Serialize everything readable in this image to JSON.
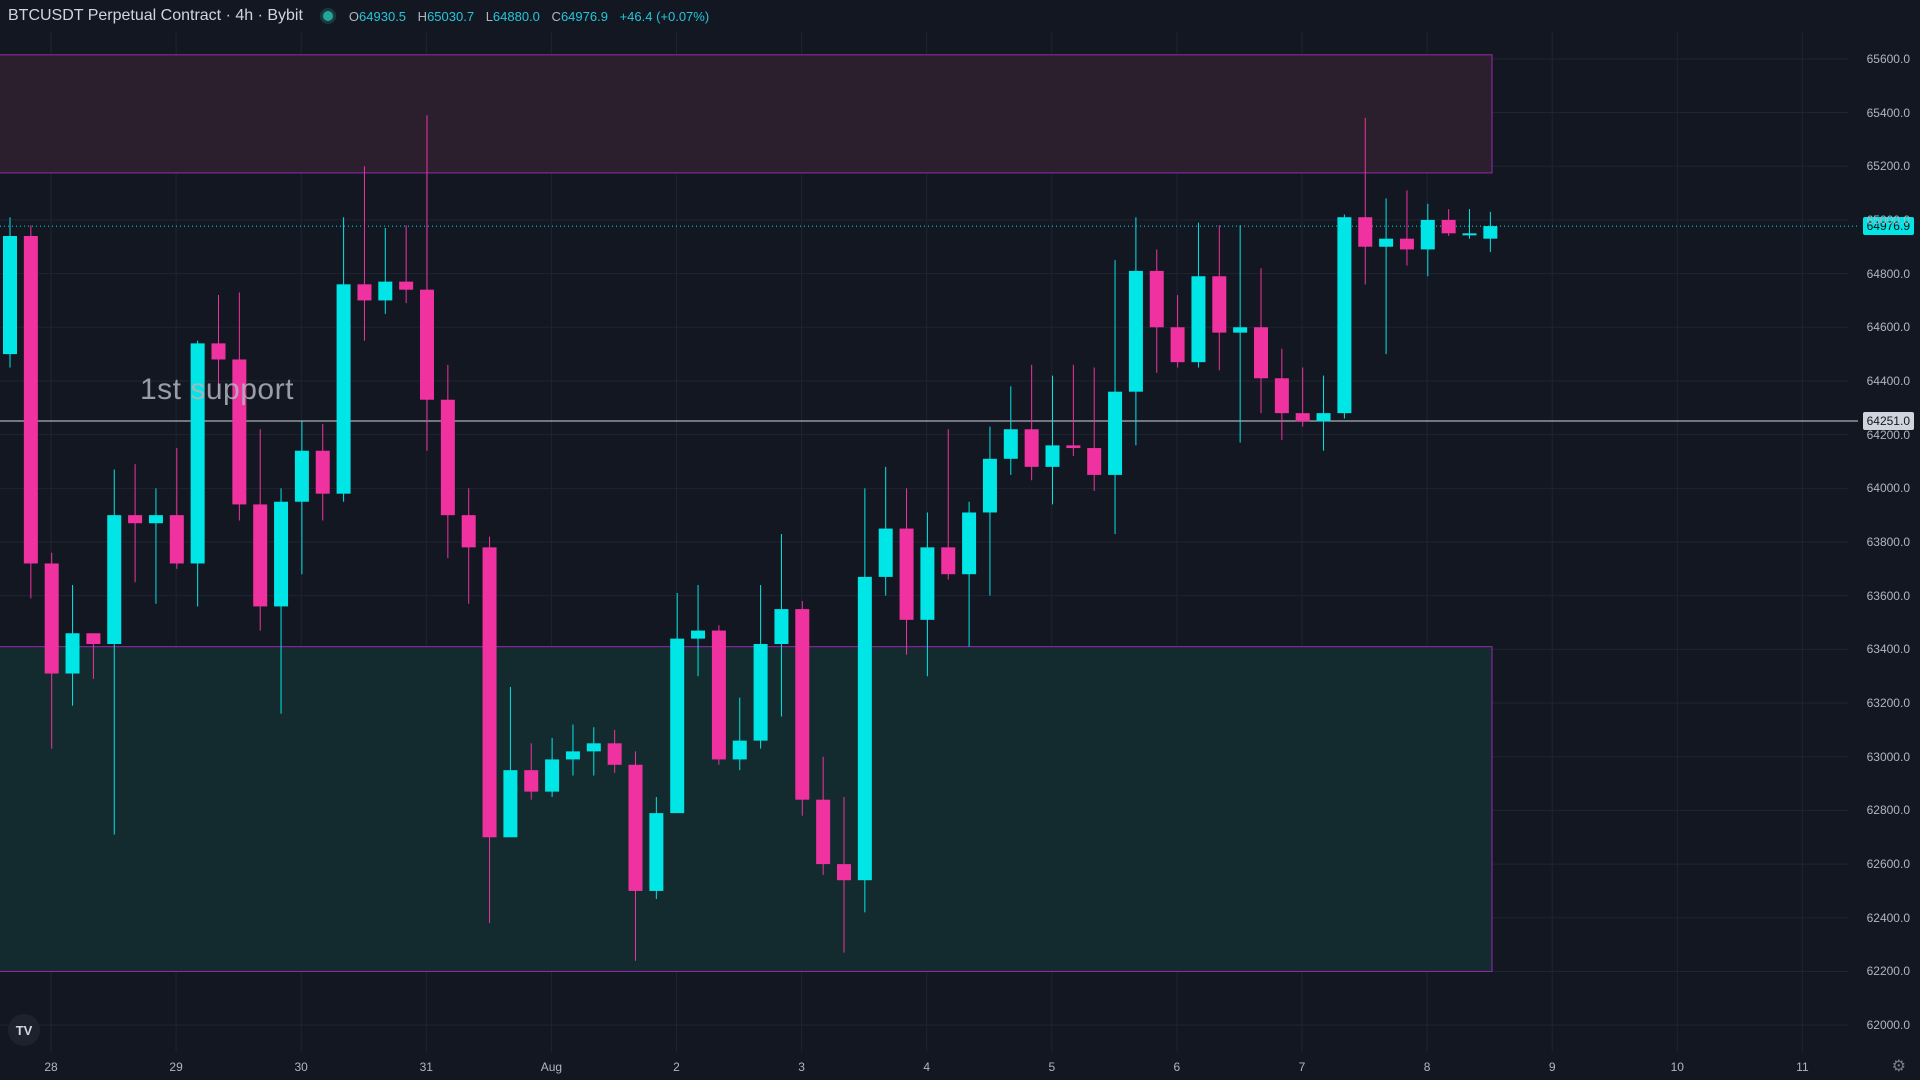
{
  "header": {
    "symbol": "BTCUSDT Perpetual Contract · 4h · Bybit",
    "open_label": "O",
    "open": "64930.5",
    "high_label": "H",
    "high": "65030.7",
    "low_label": "L",
    "low": "64880.0",
    "close_label": "C",
    "close": "64976.9",
    "change": "+46.4 (+0.07%)"
  },
  "annotation": {
    "text": "1st support"
  },
  "price_tags": {
    "last": "64976.9",
    "line": "64251.0"
  },
  "colors": {
    "background": "#131722",
    "bull": "#00e5e5",
    "bear": "#f032a0",
    "resistance_fill": "#2c1f2d",
    "support_fill": "#132a2e",
    "zone_border": "#9c27b0"
  },
  "icons": {
    "logo": "tradingview-logo-icon",
    "settings": "gear-icon",
    "status": "market-open-dot-icon"
  },
  "chart_data": {
    "type": "candlestick",
    "interval": "4h",
    "ylim": [
      61900,
      65700
    ],
    "y_ticks": [
      "62000.0",
      "62200.0",
      "62400.0",
      "62600.0",
      "62800.0",
      "63000.0",
      "63200.0",
      "63400.0",
      "63600.0",
      "63800.0",
      "64000.0",
      "64200.0",
      "64400.0",
      "64600.0",
      "64800.0",
      "65000.0",
      "65200.0",
      "65400.0",
      "65600.0"
    ],
    "x_ticks": [
      "28",
      "29",
      "30",
      "31",
      "Aug",
      "2",
      "3",
      "4",
      "5",
      "6",
      "7",
      "8",
      "9",
      "10",
      "11"
    ],
    "zones": [
      {
        "kind": "resistance",
        "low": 65175,
        "high": 65615
      },
      {
        "kind": "support",
        "low": 62200,
        "high": 63410
      }
    ],
    "support_level": 64251.0,
    "last_price": 64976.9,
    "candles": [
      {
        "o": 64500,
        "h": 65010,
        "l": 64450,
        "c": 64940
      },
      {
        "o": 64940,
        "h": 64980,
        "l": 63590,
        "c": 63720
      },
      {
        "o": 63720,
        "h": 63760,
        "l": 63030,
        "c": 63310
      },
      {
        "o": 63310,
        "h": 63640,
        "l": 63190,
        "c": 63460
      },
      {
        "o": 63460,
        "h": 63460,
        "l": 63290,
        "c": 63420
      },
      {
        "o": 63420,
        "h": 64070,
        "l": 62710,
        "c": 63900
      },
      {
        "o": 63900,
        "h": 64090,
        "l": 63650,
        "c": 63870
      },
      {
        "o": 63870,
        "h": 64000,
        "l": 63570,
        "c": 63900
      },
      {
        "o": 63900,
        "h": 64150,
        "l": 63700,
        "c": 63720
      },
      {
        "o": 63720,
        "h": 64550,
        "l": 63560,
        "c": 64540
      },
      {
        "o": 64540,
        "h": 64720,
        "l": 64350,
        "c": 64480
      },
      {
        "o": 64480,
        "h": 64730,
        "l": 63880,
        "c": 63940
      },
      {
        "o": 63940,
        "h": 64220,
        "l": 63470,
        "c": 63560
      },
      {
        "o": 63560,
        "h": 64000,
        "l": 63160,
        "c": 63950
      },
      {
        "o": 63950,
        "h": 64250,
        "l": 63680,
        "c": 64140
      },
      {
        "o": 64140,
        "h": 64240,
        "l": 63880,
        "c": 63980
      },
      {
        "o": 63980,
        "h": 65010,
        "l": 63950,
        "c": 64760
      },
      {
        "o": 64760,
        "h": 65200,
        "l": 64550,
        "c": 64700
      },
      {
        "o": 64700,
        "h": 64970,
        "l": 64650,
        "c": 64770
      },
      {
        "o": 64770,
        "h": 64980,
        "l": 64690,
        "c": 64740
      },
      {
        "o": 64740,
        "h": 65390,
        "l": 64140,
        "c": 64330
      },
      {
        "o": 64330,
        "h": 64460,
        "l": 63740,
        "c": 63900
      },
      {
        "o": 63900,
        "h": 64000,
        "l": 63570,
        "c": 63780
      },
      {
        "o": 63780,
        "h": 63820,
        "l": 62380,
        "c": 62700
      },
      {
        "o": 62700,
        "h": 63260,
        "l": 62700,
        "c": 62950
      },
      {
        "o": 62950,
        "h": 63050,
        "l": 62840,
        "c": 62870
      },
      {
        "o": 62870,
        "h": 63070,
        "l": 62850,
        "c": 62990
      },
      {
        "o": 62990,
        "h": 63120,
        "l": 62930,
        "c": 63020
      },
      {
        "o": 63020,
        "h": 63110,
        "l": 62930,
        "c": 63050
      },
      {
        "o": 63050,
        "h": 63100,
        "l": 62940,
        "c": 62970
      },
      {
        "o": 62970,
        "h": 63020,
        "l": 62240,
        "c": 62500
      },
      {
        "o": 62500,
        "h": 62850,
        "l": 62470,
        "c": 62790
      },
      {
        "o": 62790,
        "h": 63610,
        "l": 62790,
        "c": 63440
      },
      {
        "o": 63440,
        "h": 63640,
        "l": 63300,
        "c": 63470
      },
      {
        "o": 63470,
        "h": 63490,
        "l": 62970,
        "c": 62990
      },
      {
        "o": 62990,
        "h": 63220,
        "l": 62950,
        "c": 63060
      },
      {
        "o": 63060,
        "h": 63640,
        "l": 63030,
        "c": 63420
      },
      {
        "o": 63420,
        "h": 63830,
        "l": 63150,
        "c": 63550
      },
      {
        "o": 63550,
        "h": 63580,
        "l": 62780,
        "c": 62840
      },
      {
        "o": 62840,
        "h": 63000,
        "l": 62560,
        "c": 62600
      },
      {
        "o": 62600,
        "h": 62850,
        "l": 62270,
        "c": 62540
      },
      {
        "o": 62540,
        "h": 64000,
        "l": 62420,
        "c": 63670
      },
      {
        "o": 63670,
        "h": 64080,
        "l": 63600,
        "c": 63850
      },
      {
        "o": 63850,
        "h": 64000,
        "l": 63380,
        "c": 63510
      },
      {
        "o": 63510,
        "h": 63910,
        "l": 63300,
        "c": 63780
      },
      {
        "o": 63780,
        "h": 64220,
        "l": 63660,
        "c": 63680
      },
      {
        "o": 63680,
        "h": 63950,
        "l": 63410,
        "c": 63910
      },
      {
        "o": 63910,
        "h": 64230,
        "l": 63600,
        "c": 64110
      },
      {
        "o": 64110,
        "h": 64380,
        "l": 64050,
        "c": 64220
      },
      {
        "o": 64220,
        "h": 64460,
        "l": 64030,
        "c": 64080
      },
      {
        "o": 64080,
        "h": 64420,
        "l": 63940,
        "c": 64160
      },
      {
        "o": 64160,
        "h": 64460,
        "l": 64120,
        "c": 64150
      },
      {
        "o": 64150,
        "h": 64450,
        "l": 63990,
        "c": 64050
      },
      {
        "o": 64050,
        "h": 64850,
        "l": 63830,
        "c": 64360
      },
      {
        "o": 64360,
        "h": 65010,
        "l": 64160,
        "c": 64810
      },
      {
        "o": 64810,
        "h": 64890,
        "l": 64430,
        "c": 64600
      },
      {
        "o": 64600,
        "h": 64720,
        "l": 64450,
        "c": 64470
      },
      {
        "o": 64470,
        "h": 64990,
        "l": 64450,
        "c": 64790
      },
      {
        "o": 64790,
        "h": 64980,
        "l": 64440,
        "c": 64580
      },
      {
        "o": 64580,
        "h": 64980,
        "l": 64170,
        "c": 64600
      },
      {
        "o": 64600,
        "h": 64820,
        "l": 64280,
        "c": 64410
      },
      {
        "o": 64410,
        "h": 64520,
        "l": 64180,
        "c": 64280
      },
      {
        "o": 64280,
        "h": 64450,
        "l": 64230,
        "c": 64250
      },
      {
        "o": 64250,
        "h": 64420,
        "l": 64140,
        "c": 64280
      },
      {
        "o": 64280,
        "h": 65020,
        "l": 64260,
        "c": 65010
      },
      {
        "o": 65010,
        "h": 65380,
        "l": 64760,
        "c": 64900
      },
      {
        "o": 64900,
        "h": 65080,
        "l": 64500,
        "c": 64930
      },
      {
        "o": 64930,
        "h": 65110,
        "l": 64830,
        "c": 64890
      },
      {
        "o": 64890,
        "h": 65060,
        "l": 64790,
        "c": 65000
      },
      {
        "o": 65000,
        "h": 65040,
        "l": 64940,
        "c": 64950
      },
      {
        "o": 64950,
        "h": 65040,
        "l": 64930,
        "c": 64950
      },
      {
        "o": 64930,
        "h": 65030,
        "l": 64880,
        "c": 64977
      }
    ]
  }
}
